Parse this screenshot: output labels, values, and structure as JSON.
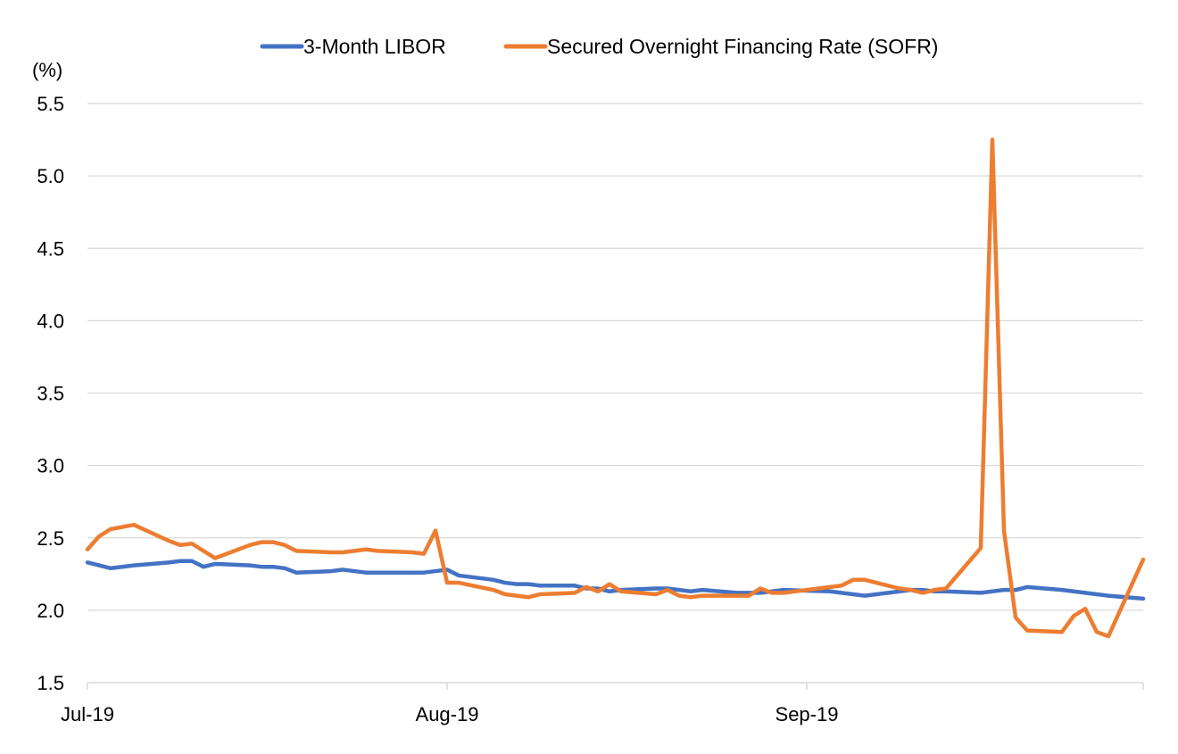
{
  "chart_data": {
    "type": "line",
    "title": "",
    "xlabel": "",
    "ylabel": "",
    "unit_label": "(%)",
    "ylim": [
      1.5,
      5.5
    ],
    "yticks": [
      1.5,
      2.0,
      2.5,
      3.0,
      3.5,
      4.0,
      4.5,
      5.0,
      5.5
    ],
    "yticks_text": [
      "1.5",
      "2.0",
      "2.5",
      "3.0",
      "3.5",
      "4.0",
      "4.5",
      "5.0",
      "5.5"
    ],
    "xlim": [
      "2019-07-01",
      "2019-09-30"
    ],
    "xticks": [
      {
        "date": "2019-07-01",
        "label": "Jul-19"
      },
      {
        "date": "2019-08-01",
        "label": "Aug-19"
      },
      {
        "date": "2019-09-01",
        "label": "Sep-19"
      }
    ],
    "grid": "horizontal",
    "legend": "top",
    "series": [
      {
        "name": "3-Month LIBOR",
        "color": "#4472c4",
        "points": [
          [
            "2019-07-01",
            2.33
          ],
          [
            "2019-07-02",
            2.31
          ],
          [
            "2019-07-03",
            2.29
          ],
          [
            "2019-07-05",
            2.31
          ],
          [
            "2019-07-08",
            2.33
          ],
          [
            "2019-07-09",
            2.34
          ],
          [
            "2019-07-10",
            2.34
          ],
          [
            "2019-07-11",
            2.3
          ],
          [
            "2019-07-12",
            2.32
          ],
          [
            "2019-07-15",
            2.31
          ],
          [
            "2019-07-16",
            2.3
          ],
          [
            "2019-07-17",
            2.3
          ],
          [
            "2019-07-18",
            2.29
          ],
          [
            "2019-07-19",
            2.26
          ],
          [
            "2019-07-22",
            2.27
          ],
          [
            "2019-07-23",
            2.28
          ],
          [
            "2019-07-24",
            2.27
          ],
          [
            "2019-07-25",
            2.26
          ],
          [
            "2019-07-26",
            2.26
          ],
          [
            "2019-07-29",
            2.26
          ],
          [
            "2019-07-30",
            2.26
          ],
          [
            "2019-07-31",
            2.27
          ],
          [
            "2019-08-01",
            2.28
          ],
          [
            "2019-08-02",
            2.24
          ],
          [
            "2019-08-05",
            2.21
          ],
          [
            "2019-08-06",
            2.19
          ],
          [
            "2019-08-07",
            2.18
          ],
          [
            "2019-08-08",
            2.18
          ],
          [
            "2019-08-09",
            2.17
          ],
          [
            "2019-08-12",
            2.17
          ],
          [
            "2019-08-13",
            2.15
          ],
          [
            "2019-08-14",
            2.15
          ],
          [
            "2019-08-15",
            2.13
          ],
          [
            "2019-08-16",
            2.14
          ],
          [
            "2019-08-19",
            2.15
          ],
          [
            "2019-08-20",
            2.15
          ],
          [
            "2019-08-21",
            2.14
          ],
          [
            "2019-08-22",
            2.13
          ],
          [
            "2019-08-23",
            2.14
          ],
          [
            "2019-08-26",
            2.12
          ],
          [
            "2019-08-27",
            2.12
          ],
          [
            "2019-08-28",
            2.12
          ],
          [
            "2019-08-29",
            2.13
          ],
          [
            "2019-08-30",
            2.14
          ],
          [
            "2019-09-03",
            2.13
          ],
          [
            "2019-09-04",
            2.12
          ],
          [
            "2019-09-05",
            2.11
          ],
          [
            "2019-09-06",
            2.1
          ],
          [
            "2019-09-09",
            2.13
          ],
          [
            "2019-09-10",
            2.14
          ],
          [
            "2019-09-11",
            2.14
          ],
          [
            "2019-09-12",
            2.13
          ],
          [
            "2019-09-13",
            2.13
          ],
          [
            "2019-09-16",
            2.12
          ],
          [
            "2019-09-17",
            2.13
          ],
          [
            "2019-09-18",
            2.14
          ],
          [
            "2019-09-19",
            2.14
          ],
          [
            "2019-09-20",
            2.16
          ],
          [
            "2019-09-23",
            2.14
          ],
          [
            "2019-09-24",
            2.13
          ],
          [
            "2019-09-25",
            2.12
          ],
          [
            "2019-09-26",
            2.11
          ],
          [
            "2019-09-27",
            2.1
          ],
          [
            "2019-09-30",
            2.08
          ]
        ]
      },
      {
        "name": "Secured Overnight Financing Rate (SOFR)",
        "color": "#ed7d31",
        "points": [
          [
            "2019-07-01",
            2.42
          ],
          [
            "2019-07-02",
            2.51
          ],
          [
            "2019-07-03",
            2.56
          ],
          [
            "2019-07-05",
            2.59
          ],
          [
            "2019-07-08",
            2.48
          ],
          [
            "2019-07-09",
            2.45
          ],
          [
            "2019-07-10",
            2.46
          ],
          [
            "2019-07-12",
            2.36
          ],
          [
            "2019-07-15",
            2.45
          ],
          [
            "2019-07-16",
            2.47
          ],
          [
            "2019-07-17",
            2.47
          ],
          [
            "2019-07-18",
            2.45
          ],
          [
            "2019-07-19",
            2.41
          ],
          [
            "2019-07-22",
            2.4
          ],
          [
            "2019-07-23",
            2.4
          ],
          [
            "2019-07-25",
            2.42
          ],
          [
            "2019-07-26",
            2.41
          ],
          [
            "2019-07-29",
            2.4
          ],
          [
            "2019-07-30",
            2.39
          ],
          [
            "2019-07-31",
            2.55
          ],
          [
            "2019-08-01",
            2.19
          ],
          [
            "2019-08-02",
            2.19
          ],
          [
            "2019-08-05",
            2.14
          ],
          [
            "2019-08-06",
            2.11
          ],
          [
            "2019-08-07",
            2.1
          ],
          [
            "2019-08-08",
            2.09
          ],
          [
            "2019-08-09",
            2.11
          ],
          [
            "2019-08-12",
            2.12
          ],
          [
            "2019-08-13",
            2.16
          ],
          [
            "2019-08-14",
            2.13
          ],
          [
            "2019-08-15",
            2.18
          ],
          [
            "2019-08-16",
            2.13
          ],
          [
            "2019-08-19",
            2.11
          ],
          [
            "2019-08-20",
            2.14
          ],
          [
            "2019-08-21",
            2.1
          ],
          [
            "2019-08-22",
            2.09
          ],
          [
            "2019-08-23",
            2.1
          ],
          [
            "2019-08-26",
            2.1
          ],
          [
            "2019-08-27",
            2.1
          ],
          [
            "2019-08-28",
            2.15
          ],
          [
            "2019-08-29",
            2.12
          ],
          [
            "2019-08-30",
            2.12
          ],
          [
            "2019-09-03",
            2.16
          ],
          [
            "2019-09-04",
            2.17
          ],
          [
            "2019-09-05",
            2.21
          ],
          [
            "2019-09-06",
            2.21
          ],
          [
            "2019-09-09",
            2.15
          ],
          [
            "2019-09-10",
            2.14
          ],
          [
            "2019-09-11",
            2.12
          ],
          [
            "2019-09-12",
            2.14
          ],
          [
            "2019-09-13",
            2.15
          ],
          [
            "2019-09-16",
            2.43
          ],
          [
            "2019-09-17",
            5.25
          ],
          [
            "2019-09-18",
            2.55
          ],
          [
            "2019-09-19",
            1.95
          ],
          [
            "2019-09-20",
            1.86
          ],
          [
            "2019-09-23",
            1.85
          ],
          [
            "2019-09-24",
            1.96
          ],
          [
            "2019-09-25",
            2.01
          ],
          [
            "2019-09-26",
            1.85
          ],
          [
            "2019-09-27",
            1.82
          ],
          [
            "2019-09-30",
            2.35
          ]
        ]
      }
    ]
  }
}
